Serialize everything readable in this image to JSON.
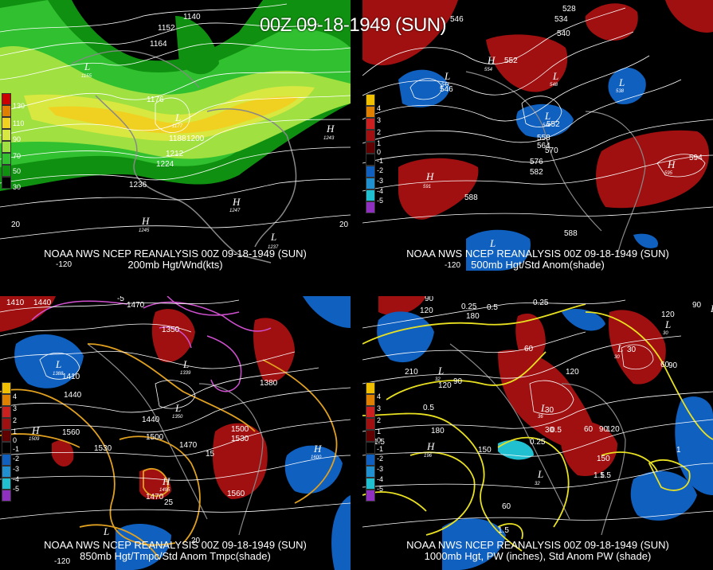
{
  "title": "00Z 09-18-1949 (SUN)",
  "panels": [
    {
      "caption1": "NOAA NWS NCEP REANALYSIS 00Z 09-18-1949 (SUN)",
      "caption2": "200mb Hgt/Wnd(kts)",
      "legend": [
        "130",
        "110",
        "90",
        "70",
        "50",
        "30"
      ],
      "legend_colors": [
        "#cc0000",
        "#e08000",
        "#f0d020",
        "#a0e040",
        "#30c030",
        "#109010"
      ],
      "contour_labels": [
        "1140",
        "1152",
        "1164",
        "1176",
        "1188",
        "1200",
        "1212",
        "1224",
        "1236"
      ],
      "centers": [
        {
          "t": "L",
          "v": "1155"
        },
        {
          "t": "L",
          "v": "1177"
        },
        {
          "t": "H",
          "v": "1243"
        },
        {
          "t": "H",
          "v": "1247"
        },
        {
          "t": "H",
          "v": "1245"
        },
        {
          "t": "L",
          "v": "1237"
        }
      ],
      "axis": [
        "20",
        "-120",
        "20"
      ]
    },
    {
      "caption1": "NOAA NWS NCEP REANALYSIS 00Z 09-18-1949 (SUN)",
      "caption2": "500mb Hgt/Std Anom(shade)",
      "legend": [
        "4",
        "3",
        "2",
        "1",
        "0",
        "-1",
        "-2",
        "-3",
        "-4",
        "-5"
      ],
      "legend_colors": [
        "#f0c000",
        "#e08000",
        "#cc2020",
        "#a01010",
        "#600000",
        "#000000",
        "#1060c0",
        "#2090d0",
        "#20c0d0",
        "#9030c0"
      ],
      "contour_labels": [
        "528",
        "534",
        "540",
        "546",
        "546",
        "552",
        "552",
        "558",
        "564",
        "570",
        "576",
        "582",
        "588",
        "588",
        "594"
      ],
      "centers": [
        {
          "t": "L",
          "v": "544"
        },
        {
          "t": "H",
          "v": "554"
        },
        {
          "t": "L",
          "v": "548"
        },
        {
          "t": "L",
          "v": "538"
        },
        {
          "t": "L",
          "v": "546"
        },
        {
          "t": "H",
          "v": "591"
        },
        {
          "t": "H",
          "v": "595"
        },
        {
          "t": "L",
          "v": ""
        }
      ],
      "axis": [
        "-120"
      ]
    },
    {
      "caption1": "NOAA NWS NCEP REANALYSIS 00Z 09-18-1949 (SUN)",
      "caption2": "850mb Hgt/Tmpc/Std Anom Tmpc(shade)",
      "legend": [
        "4",
        "3",
        "2",
        "1",
        "0",
        "-1",
        "-2",
        "-3",
        "-4",
        "-5"
      ],
      "legend_colors": [
        "#f0c000",
        "#e08000",
        "#cc2020",
        "#a01010",
        "#600000",
        "#000000",
        "#1060c0",
        "#2090d0",
        "#20c0d0",
        "#9030c0"
      ],
      "contour_labels": [
        "1410",
        "1440",
        "1470",
        "1350",
        "1410",
        "1440",
        "1380",
        "1440",
        "1500",
        "1530",
        "1560",
        "1470",
        "1500",
        "1530",
        "1470",
        "1560",
        "-5",
        "15",
        "25",
        "20"
      ],
      "centers": [
        {
          "t": "L",
          "v": "1388"
        },
        {
          "t": "L",
          "v": "1339"
        },
        {
          "t": "L",
          "v": "1350"
        },
        {
          "t": "H",
          "v": "1509"
        },
        {
          "t": "H",
          "v": "1600"
        },
        {
          "t": "H",
          "v": "1495"
        },
        {
          "t": "L",
          "v": ""
        }
      ],
      "axis": [
        "-120"
      ]
    },
    {
      "caption1": "NOAA NWS NCEP REANALYSIS 00Z 09-18-1949 (SUN)",
      "caption2": "1000mb Hgt, PW (inches), Std Anom PW (shade)",
      "legend": [
        "4",
        "3",
        "2",
        "1",
        "0",
        "-1",
        "-2",
        "-3",
        "-4",
        "-5"
      ],
      "legend_colors": [
        "#f0c000",
        "#e08000",
        "#cc2020",
        "#a01010",
        "#600000",
        "#000000",
        "#1060c0",
        "#2090d0",
        "#20c0d0",
        "#9030c0"
      ],
      "contour_labels": [
        "90",
        "120",
        "0.25",
        "0.5",
        "0.25",
        "180",
        "210",
        "90",
        "120",
        "60",
        "30",
        "120",
        "90",
        "0.5",
        "1.5",
        "1.5",
        "180",
        "150",
        "30",
        "0.5",
        "60",
        "90",
        "120",
        "150",
        "0.25",
        "1",
        "1.5",
        "60",
        "1.5",
        "90",
        "120",
        "60",
        "30"
      ],
      "centers": [
        {
          "t": "L",
          "v": "32"
        },
        {
          "t": "L",
          "v": "30"
        },
        {
          "t": "L",
          "v": "36"
        },
        {
          "t": "H",
          "v": "196"
        },
        {
          "t": "L",
          "v": "32"
        },
        {
          "t": "L",
          "v": "30"
        },
        {
          "t": "H",
          "v": "185"
        }
      ],
      "axis": []
    }
  ]
}
